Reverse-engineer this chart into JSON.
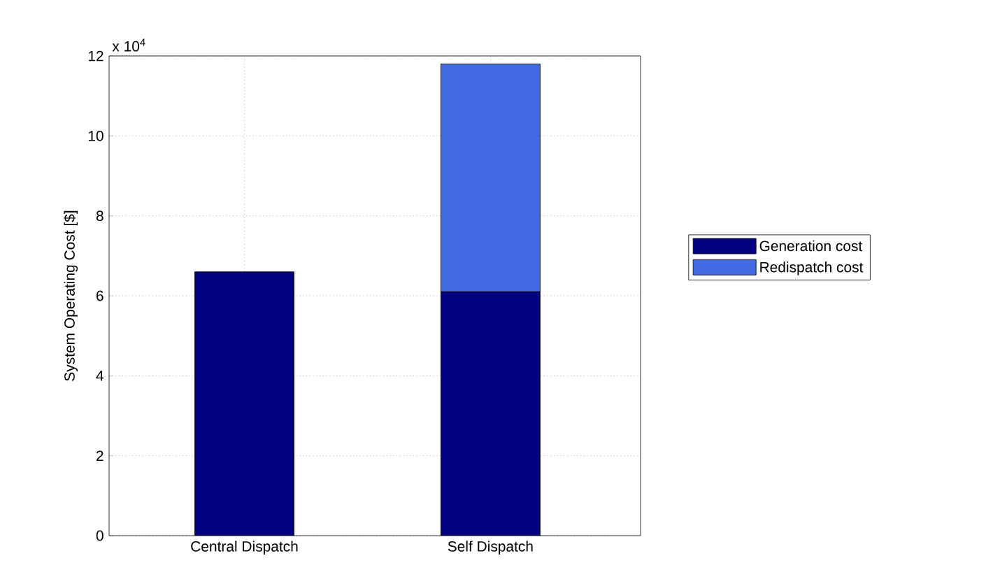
{
  "chart_data": {
    "type": "bar",
    "stacked": true,
    "ylabel": "System Operating Cost [$]",
    "categories": [
      "Central Dispatch",
      "Self Dispatch"
    ],
    "series": [
      {
        "name": "Generation cost",
        "color": "#000080",
        "values": [
          6.6,
          6.1
        ]
      },
      {
        "name": "Redispatch cost",
        "color": "#4169e1",
        "values": [
          null,
          5.7
        ]
      }
    ],
    "ylim": [
      0,
      12
    ],
    "yticks": [
      0,
      2,
      4,
      6,
      8,
      10,
      12
    ],
    "grid": true,
    "legend": "right",
    "annotations": [
      "x 10$^{4}$"
    ]
  }
}
